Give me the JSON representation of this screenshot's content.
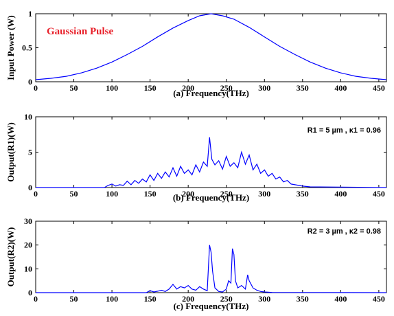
{
  "colors": {
    "line": "#0000ff",
    "annotation_red": "#e8202a"
  },
  "chart_data": [
    {
      "type": "line",
      "xlabel": "(a)  Frequency(THz)",
      "ylabel": "Input Power (W)",
      "xlim": [
        0,
        460
      ],
      "ylim": [
        0,
        1
      ],
      "xticks": [
        "0",
        "50",
        "100",
        "150",
        "200",
        "250",
        "300",
        "350",
        "400",
        "450"
      ],
      "yticks": [
        "0",
        "0.5",
        "1"
      ],
      "annotation": "Gaussian Pulse",
      "series": [
        {
          "x": [
            0,
            20,
            40,
            60,
            80,
            100,
            120,
            140,
            160,
            180,
            200,
            215,
            230,
            245,
            260,
            280,
            300,
            320,
            340,
            360,
            380,
            400,
            420,
            440,
            460
          ],
          "y": [
            0.03,
            0.05,
            0.08,
            0.13,
            0.2,
            0.29,
            0.4,
            0.52,
            0.66,
            0.79,
            0.9,
            0.97,
            1.0,
            0.97,
            0.92,
            0.8,
            0.66,
            0.52,
            0.4,
            0.29,
            0.2,
            0.13,
            0.08,
            0.05,
            0.03
          ]
        }
      ]
    },
    {
      "type": "line",
      "xlabel": "(b)  Frequency(THz)",
      "ylabel": "Output(R1)(W)",
      "xlim": [
        0,
        460
      ],
      "ylim": [
        0,
        10
      ],
      "xticks": [
        "0",
        "50",
        "100",
        "150",
        "200",
        "250",
        "300",
        "350",
        "400",
        "450"
      ],
      "yticks": [
        "0",
        "5",
        "10"
      ],
      "annotation": "R1 = 5 µm , κ1 = 0.96",
      "series": [
        {
          "x": [
            0,
            90,
            95,
            100,
            105,
            110,
            115,
            120,
            125,
            130,
            135,
            140,
            145,
            150,
            155,
            160,
            165,
            170,
            175,
            180,
            185,
            190,
            195,
            200,
            205,
            210,
            215,
            220,
            225,
            228,
            231,
            235,
            240,
            245,
            250,
            255,
            260,
            265,
            270,
            275,
            280,
            285,
            290,
            295,
            300,
            305,
            310,
            315,
            320,
            325,
            330,
            335,
            340,
            350,
            360,
            460
          ],
          "y": [
            0,
            0,
            0.3,
            0.5,
            0.2,
            0.4,
            0.3,
            0.9,
            0.4,
            1.0,
            0.6,
            1.2,
            0.8,
            1.8,
            1.0,
            2.0,
            1.3,
            2.2,
            1.5,
            2.8,
            1.6,
            3.0,
            2.0,
            2.5,
            1.8,
            3.2,
            2.2,
            3.6,
            3.0,
            7.1,
            4.0,
            3.2,
            3.8,
            2.6,
            4.4,
            3.0,
            3.5,
            2.8,
            5.0,
            3.3,
            4.6,
            2.5,
            3.3,
            2.0,
            2.5,
            1.6,
            2.0,
            1.2,
            1.5,
            0.8,
            1.0,
            0.5,
            0.4,
            0.2,
            0.1,
            0
          ]
        }
      ]
    },
    {
      "type": "line",
      "xlabel": "(c)  Frequency(THz)",
      "ylabel": "Output(R2)(W)",
      "xlim": [
        0,
        460
      ],
      "ylim": [
        0,
        30
      ],
      "xticks": [
        "0",
        "50",
        "100",
        "150",
        "200",
        "250",
        "300",
        "350",
        "400",
        "450"
      ],
      "yticks": [
        "0",
        "10",
        "20",
        "30"
      ],
      "annotation": "R2 = 3 µm , κ2 = 0.98",
      "series": [
        {
          "x": [
            0,
            145,
            150,
            155,
            160,
            165,
            170,
            175,
            180,
            185,
            190,
            195,
            200,
            205,
            210,
            215,
            220,
            225,
            228,
            230,
            232,
            235,
            240,
            245,
            250,
            253,
            256,
            258,
            260,
            262,
            265,
            270,
            275,
            278,
            280,
            285,
            290,
            295,
            300,
            310,
            460
          ],
          "y": [
            0,
            0,
            0.8,
            0.3,
            0.6,
            1.0,
            0.5,
            1.5,
            3.5,
            1.5,
            2.5,
            2.0,
            3.0,
            1.5,
            1.0,
            2.5,
            1.5,
            0.8,
            20,
            17,
            9,
            2.0,
            0.5,
            0.3,
            1.5,
            5,
            4,
            18.5,
            16,
            5,
            2.0,
            3.0,
            1.5,
            7.5,
            5.0,
            2.0,
            1.0,
            0.5,
            0.3,
            0.1,
            0
          ]
        }
      ]
    }
  ]
}
